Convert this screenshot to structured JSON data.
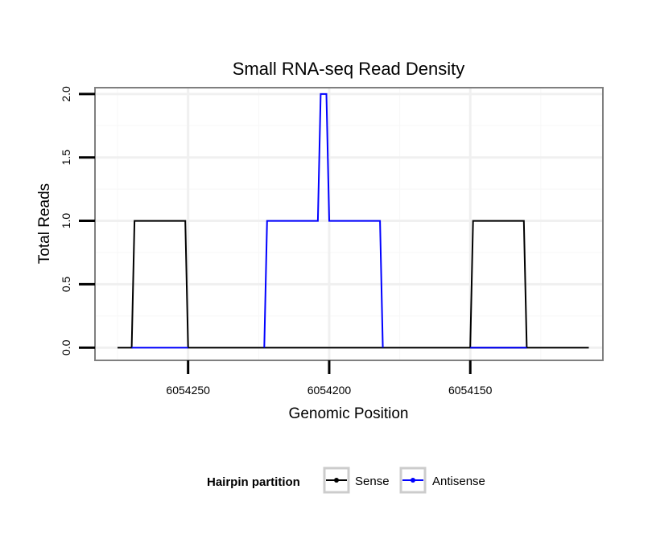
{
  "chart_data": {
    "type": "line",
    "title": "Small RNA-seq Read Density",
    "xlabel": "Genomic Position",
    "ylabel": "Total Reads",
    "xlim": [
      6054283,
      6054103
    ],
    "x_reversed": true,
    "ylim": [
      -0.1,
      2.05
    ],
    "x_ticks": [
      6054250,
      6054200,
      6054150
    ],
    "x_tick_labels": [
      "6054250",
      "6054200",
      "6054150"
    ],
    "y_ticks": [
      0,
      0.5,
      1,
      1.5,
      2
    ],
    "y_tick_labels": [
      "0.0",
      "0.5",
      "1.0",
      "1.5",
      "2.0"
    ],
    "grid": true,
    "legend": {
      "title": "Hairpin partition",
      "position": "bottom",
      "entries": [
        "Sense",
        "Antisense"
      ]
    },
    "series": [
      {
        "name": "Sense",
        "color": "#000000",
        "x": [
          6054275,
          6054270,
          6054269,
          6054251,
          6054250,
          6054108
        ],
        "y": [
          0,
          0,
          1,
          1,
          0,
          0
        ],
        "segments": [
          {
            "x": [
              6054275,
              6054270,
              6054269,
              6054251,
              6054250,
              6054108
            ],
            "y": [
              0,
              0,
              1,
              1,
              0,
              0
            ]
          },
          {
            "x": [
              6054150,
              6054149,
              6054131,
              6054130
            ],
            "y": [
              0,
              1,
              1,
              0
            ]
          }
        ]
      },
      {
        "name": "Antisense",
        "color": "#0000ff",
        "x": [
          6054270,
          6054250,
          6054223,
          6054222,
          6054204,
          6054203,
          6054201,
          6054200,
          6054182,
          6054181,
          6054150,
          6054130
        ],
        "y": [
          0,
          0,
          0,
          1,
          1,
          2,
          2,
          1,
          1,
          0,
          0,
          0
        ],
        "segments": [
          {
            "x": [
              6054270,
              6054250
            ],
            "y": [
              0,
              0
            ]
          },
          {
            "x": [
              6054223,
              6054222,
              6054204,
              6054203,
              6054201,
              6054200,
              6054182,
              6054181
            ],
            "y": [
              0,
              1,
              1,
              2,
              2,
              1,
              1,
              0
            ]
          },
          {
            "x": [
              6054150,
              6054130
            ],
            "y": [
              0,
              0
            ]
          }
        ]
      }
    ]
  }
}
